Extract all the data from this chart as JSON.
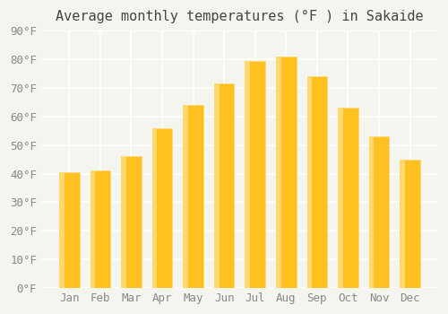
{
  "title": "Average monthly temperatures (°F ) in Sakaide",
  "months": [
    "Jan",
    "Feb",
    "Mar",
    "Apr",
    "May",
    "Jun",
    "Jul",
    "Aug",
    "Sep",
    "Oct",
    "Nov",
    "Dec"
  ],
  "values": [
    40.5,
    41.0,
    46.0,
    56.0,
    64.0,
    71.5,
    79.5,
    81.0,
    74.0,
    63.0,
    53.0,
    45.0
  ],
  "bar_color_main": "#FFC020",
  "bar_color_light": "#FFD870",
  "ylim": [
    0,
    90
  ],
  "ytick_step": 10,
  "background_color": "#F5F5F0",
  "grid_color": "#FFFFFF",
  "title_fontsize": 11,
  "tick_fontsize": 9
}
